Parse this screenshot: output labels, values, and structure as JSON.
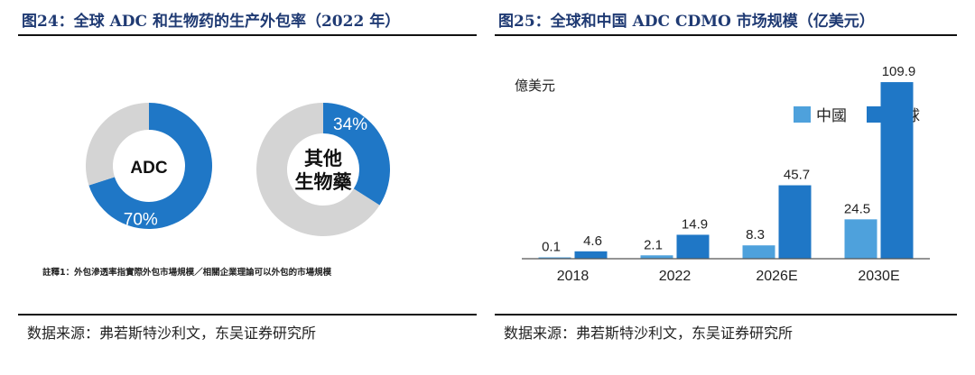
{
  "left_panel": {
    "title": "图24：全球 ADC 和生物药的生产外包率（2022 年）",
    "footnote": "註釋1：外包滲透率指實際外包市場規模／相關企業理論可以外包的市場規模",
    "source": "数据来源：弗若斯特沙利文，东吴证券研究所"
  },
  "right_panel": {
    "title": "图25：全球和中国 ADC CDMO 市场规模（亿美元）",
    "source": "数据来源：弗若斯特沙利文，东吴证券研究所"
  },
  "colors": {
    "title": "#1f3a73",
    "blue_dark": "#1f77c6",
    "blue_light": "#4ea1dc",
    "gray": "#d4d4d4"
  },
  "chart_data": [
    {
      "type": "pie",
      "subtype": "donut",
      "center_label": "ADC",
      "slices": [
        {
          "name": "ADC",
          "value": 70,
          "label": "70%",
          "color": "#1f77c6"
        },
        {
          "name": "remainder",
          "value": 30,
          "label": "",
          "color": "#d4d4d4"
        }
      ]
    },
    {
      "type": "pie",
      "subtype": "donut",
      "center_label": "其他\n生物藥",
      "center_lines": [
        "其他",
        "生物藥"
      ],
      "slices": [
        {
          "name": "其他生物藥",
          "value": 34,
          "label": "34%",
          "color": "#1f77c6"
        },
        {
          "name": "remainder",
          "value": 66,
          "label": "",
          "color": "#d4d4d4"
        }
      ]
    },
    {
      "type": "bar",
      "ylabel": "億美元",
      "categories": [
        "2018",
        "2022",
        "2026E",
        "2030E"
      ],
      "series": [
        {
          "name": "中國",
          "values": [
            0.1,
            2.1,
            8.3,
            24.5
          ],
          "labels": [
            "0.1",
            "2.1",
            "8.3",
            "24.5"
          ],
          "color": "#4ea1dc"
        },
        {
          "name": "全球",
          "values": [
            4.6,
            14.9,
            45.7,
            109.9
          ],
          "labels": [
            "4.6",
            "14.9",
            "45.7",
            "109.9"
          ],
          "color": "#1f77c6"
        }
      ],
      "ylim": [
        0,
        115
      ],
      "legend": "top-right",
      "grid": false
    }
  ]
}
